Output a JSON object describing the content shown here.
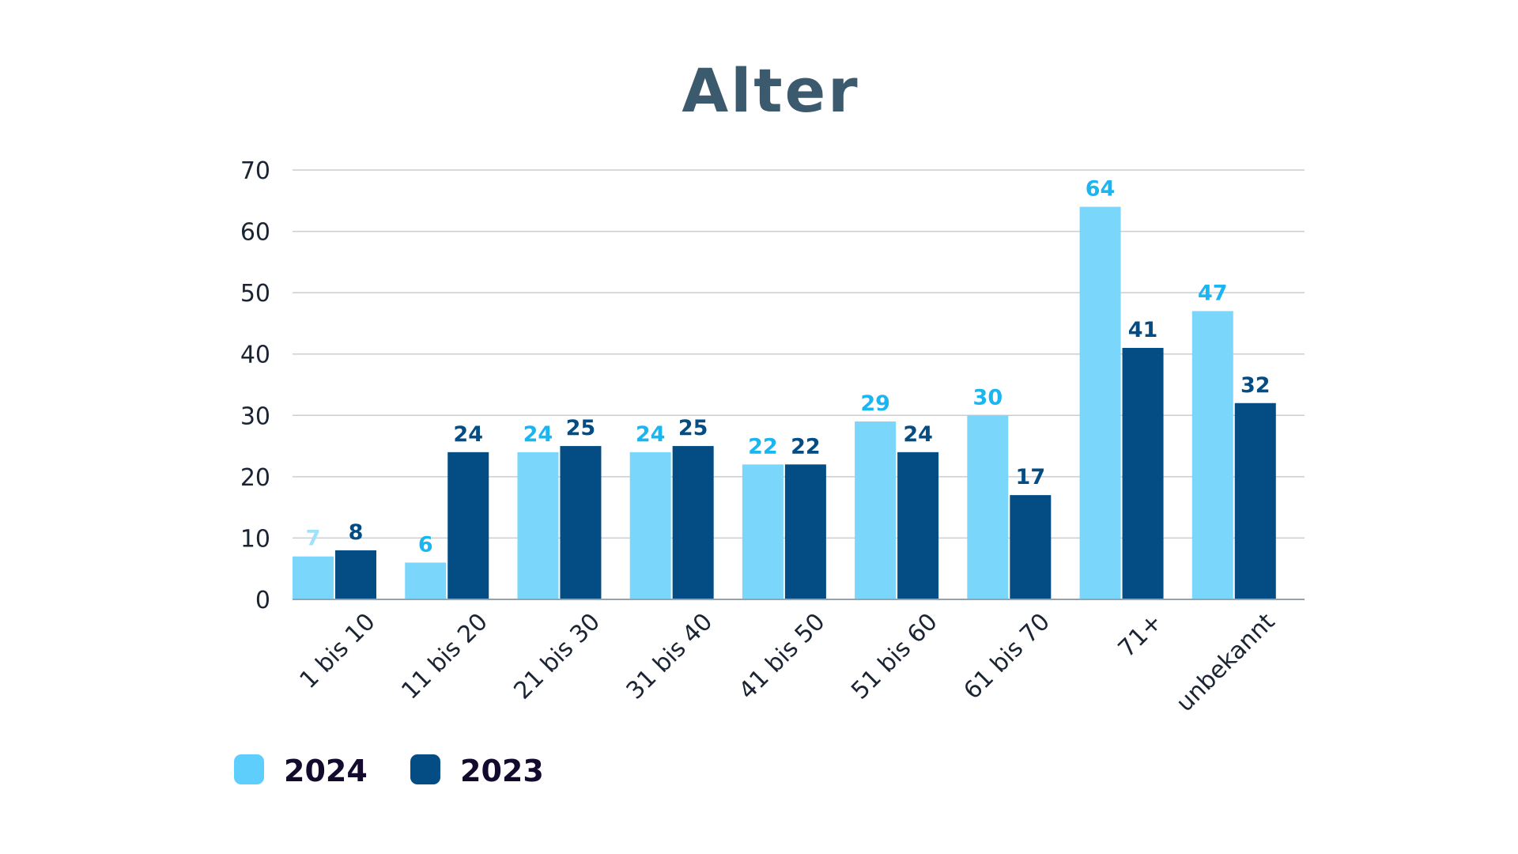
{
  "chart_data": {
    "type": "bar",
    "title": "Alter",
    "categories": [
      "1 bis 10",
      "11 bis 20",
      "21 bis 30",
      "31 bis 40",
      "41 bis 50",
      "51 bis 60",
      "61 bis 70",
      "71+",
      "unbekannt"
    ],
    "series": [
      {
        "name": "2024",
        "values": [
          7,
          6,
          24,
          24,
          22,
          29,
          30,
          64,
          47
        ],
        "color": "#7ad7fb",
        "label_color": "#1ab6f2",
        "legend_color": "#5ecffc"
      },
      {
        "name": "2023",
        "values": [
          8,
          24,
          25,
          25,
          22,
          24,
          17,
          41,
          32
        ],
        "color": "#034d84",
        "label_color": "#034d84",
        "legend_color": "#034d84"
      }
    ],
    "first_label_color": "#9fe2fb",
    "ylim": [
      0,
      70
    ],
    "yticks": [
      "0",
      "10",
      "20",
      "30",
      "40",
      "50",
      "60",
      "70"
    ],
    "grid": true,
    "legend_position": "bottom-left"
  }
}
